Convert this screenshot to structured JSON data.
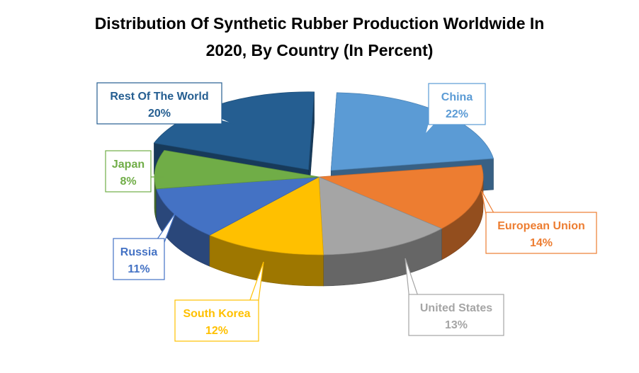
{
  "chart_data": {
    "type": "pie",
    "style": "3d-exploded",
    "title_lines": [
      "Distribution Of Synthetic Rubber Production Worldwide In",
      "2020, By Country (In Percent)"
    ],
    "slices": [
      {
        "label": "China",
        "value": 22,
        "value_label": "22%",
        "color": "#5B9BD5",
        "exploded": true
      },
      {
        "label": "European Union",
        "value": 14,
        "value_label": "14%",
        "color": "#ED7D31",
        "exploded": false
      },
      {
        "label": "United States",
        "value": 13,
        "value_label": "13%",
        "color": "#A5A5A5",
        "exploded": false
      },
      {
        "label": "South Korea",
        "value": 12,
        "value_label": "12%",
        "color": "#FFC000",
        "exploded": false
      },
      {
        "label": "Russia",
        "value": 11,
        "value_label": "11%",
        "color": "#4472C4",
        "exploded": false
      },
      {
        "label": "Japan",
        "value": 8,
        "value_label": "8%",
        "color": "#70AD47",
        "exploded": false
      },
      {
        "label": "Rest Of The World",
        "value": 20,
        "value_label": "20%",
        "color": "#255E91",
        "exploded": true
      }
    ],
    "legend": "none (callout data labels)"
  }
}
